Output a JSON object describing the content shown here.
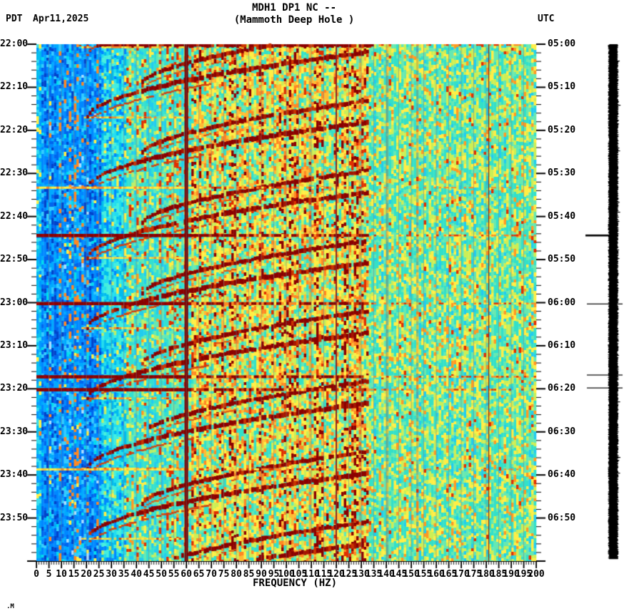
{
  "header": {
    "title": "MDH1 DP1 NC --",
    "subtitle": "(Mammoth Deep Hole )",
    "left_timezone": "PDT",
    "date": "Apr11,2025",
    "right_timezone": "UTC"
  },
  "x_axis": {
    "title": "FREQUENCY (HZ)",
    "tick_labels": [
      "0",
      "5",
      "10",
      "15",
      "20",
      "25",
      "30",
      "35",
      "40",
      "45",
      "50",
      "55",
      "60",
      "65",
      "70",
      "75",
      "80",
      "85",
      "90",
      "95",
      "100",
      "105",
      "110",
      "115",
      "120",
      "125",
      "130",
      "135",
      "140",
      "145",
      "150",
      "155",
      "160",
      "165",
      "170",
      "175",
      "180",
      "185",
      "190",
      "195",
      "200"
    ]
  },
  "left_axis": {
    "labels": [
      "22:00",
      "22:10",
      "22:20",
      "22:30",
      "22:40",
      "22:50",
      "23:00",
      "23:10",
      "23:20",
      "23:30",
      "23:40",
      "23:50"
    ]
  },
  "right_axis": {
    "labels": [
      "05:00",
      "05:10",
      "05:20",
      "05:30",
      "05:40",
      "05:50",
      "06:00",
      "06:10",
      "06:20",
      "06:30",
      "06:40",
      "06:50"
    ]
  },
  "watermark": ".M",
  "chart_data": {
    "type": "heatmap",
    "subtype": "spectrogram",
    "station": "MDH1 DP1 NC",
    "station_name": "Mammoth Deep Hole",
    "date_pdt": "Apr11,2025",
    "xlabel": "FREQUENCY (HZ)",
    "x_range_hz": [
      0,
      200
    ],
    "x_major_tick_hz": 5,
    "x_minor_tick_hz": 1,
    "y_left_timezone": "PDT",
    "y_right_timezone": "UTC",
    "y_left_start": "22:00",
    "y_right_start": "05:00",
    "y_span_min": 120,
    "y_major_tick_min": 10,
    "y_minor_tick_min": 2,
    "colormap": "jet",
    "colors": {
      "dark_red": "#8b0000",
      "red": "#e03000",
      "orange": "#ff8822",
      "yellow": "#ffee44",
      "green": "#8aee66",
      "turquoise": "#33e0c8",
      "cyan": "#22ccee",
      "blue": "#0088ff",
      "grid": "#6e7d87",
      "text": "#000000"
    },
    "background_zones_hz": [
      {
        "from": 0,
        "to": 2,
        "tone": "mixed-cyan-warm"
      },
      {
        "from": 2,
        "to": 26,
        "tone": "blue"
      },
      {
        "from": 26,
        "to": 36,
        "tone": "cyan"
      },
      {
        "from": 36,
        "to": 62,
        "tone": "cyan-turquoise"
      },
      {
        "from": 62,
        "to": 133,
        "tone": "green-yellow-orange"
      },
      {
        "from": 133,
        "to": 200,
        "tone": "turquoise-green-yellow"
      }
    ],
    "powerline_lines": [
      {
        "hz": 60,
        "strength": "strong"
      },
      {
        "hz": 120,
        "strength": "medium"
      },
      {
        "hz": 181,
        "strength": "weak"
      }
    ],
    "grid_hz": 5,
    "tremor_arcs": {
      "period_min": 16.3,
      "phase_min": 0.7,
      "f_start_hz": 20,
      "f_mid_start_hz": 42,
      "f_end_hz": 133,
      "rise_min": 15.2,
      "count": 8
    },
    "events_pdt_min": {
      "strong": [
        44.4,
        60.2,
        77.2,
        80.2
      ],
      "weak": [
        33.3,
        98.7
      ]
    },
    "top_edge_band": {
      "at_min": 0,
      "f_from_hz": 24,
      "f_to_hz": 135
    },
    "waveform_bar": {
      "color": "#000000",
      "clipped": true,
      "event_marks_min": [
        44.4,
        60.3,
        76.8,
        79.8
      ]
    }
  }
}
